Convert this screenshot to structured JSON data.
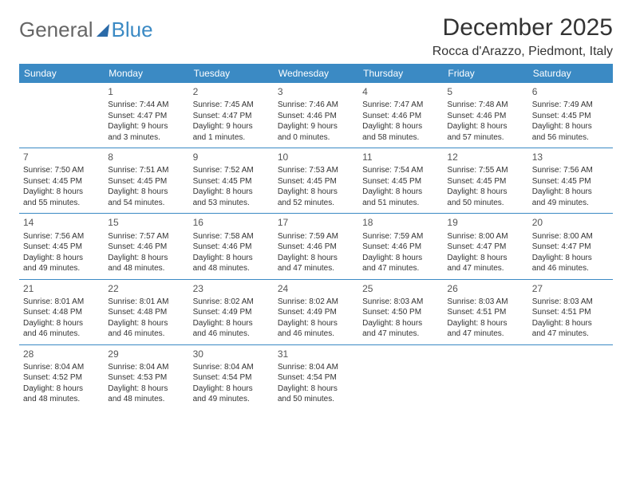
{
  "logo": {
    "text1": "General",
    "text2": "Blue"
  },
  "title": "December 2025",
  "location": "Rocca d'Arazzo, Piedmont, Italy",
  "colors": {
    "header_bg": "#3b8ac4",
    "header_text": "#ffffff",
    "border": "#3b8ac4",
    "text": "#333333",
    "logo_gray": "#666666",
    "logo_blue": "#3b8ac4"
  },
  "day_headers": [
    "Sunday",
    "Monday",
    "Tuesday",
    "Wednesday",
    "Thursday",
    "Friday",
    "Saturday"
  ],
  "weeks": [
    [
      null,
      {
        "n": "1",
        "l1": "Sunrise: 7:44 AM",
        "l2": "Sunset: 4:47 PM",
        "l3": "Daylight: 9 hours",
        "l4": "and 3 minutes."
      },
      {
        "n": "2",
        "l1": "Sunrise: 7:45 AM",
        "l2": "Sunset: 4:47 PM",
        "l3": "Daylight: 9 hours",
        "l4": "and 1 minutes."
      },
      {
        "n": "3",
        "l1": "Sunrise: 7:46 AM",
        "l2": "Sunset: 4:46 PM",
        "l3": "Daylight: 9 hours",
        "l4": "and 0 minutes."
      },
      {
        "n": "4",
        "l1": "Sunrise: 7:47 AM",
        "l2": "Sunset: 4:46 PM",
        "l3": "Daylight: 8 hours",
        "l4": "and 58 minutes."
      },
      {
        "n": "5",
        "l1": "Sunrise: 7:48 AM",
        "l2": "Sunset: 4:46 PM",
        "l3": "Daylight: 8 hours",
        "l4": "and 57 minutes."
      },
      {
        "n": "6",
        "l1": "Sunrise: 7:49 AM",
        "l2": "Sunset: 4:45 PM",
        "l3": "Daylight: 8 hours",
        "l4": "and 56 minutes."
      }
    ],
    [
      {
        "n": "7",
        "l1": "Sunrise: 7:50 AM",
        "l2": "Sunset: 4:45 PM",
        "l3": "Daylight: 8 hours",
        "l4": "and 55 minutes."
      },
      {
        "n": "8",
        "l1": "Sunrise: 7:51 AM",
        "l2": "Sunset: 4:45 PM",
        "l3": "Daylight: 8 hours",
        "l4": "and 54 minutes."
      },
      {
        "n": "9",
        "l1": "Sunrise: 7:52 AM",
        "l2": "Sunset: 4:45 PM",
        "l3": "Daylight: 8 hours",
        "l4": "and 53 minutes."
      },
      {
        "n": "10",
        "l1": "Sunrise: 7:53 AM",
        "l2": "Sunset: 4:45 PM",
        "l3": "Daylight: 8 hours",
        "l4": "and 52 minutes."
      },
      {
        "n": "11",
        "l1": "Sunrise: 7:54 AM",
        "l2": "Sunset: 4:45 PM",
        "l3": "Daylight: 8 hours",
        "l4": "and 51 minutes."
      },
      {
        "n": "12",
        "l1": "Sunrise: 7:55 AM",
        "l2": "Sunset: 4:45 PM",
        "l3": "Daylight: 8 hours",
        "l4": "and 50 minutes."
      },
      {
        "n": "13",
        "l1": "Sunrise: 7:56 AM",
        "l2": "Sunset: 4:45 PM",
        "l3": "Daylight: 8 hours",
        "l4": "and 49 minutes."
      }
    ],
    [
      {
        "n": "14",
        "l1": "Sunrise: 7:56 AM",
        "l2": "Sunset: 4:45 PM",
        "l3": "Daylight: 8 hours",
        "l4": "and 49 minutes."
      },
      {
        "n": "15",
        "l1": "Sunrise: 7:57 AM",
        "l2": "Sunset: 4:46 PM",
        "l3": "Daylight: 8 hours",
        "l4": "and 48 minutes."
      },
      {
        "n": "16",
        "l1": "Sunrise: 7:58 AM",
        "l2": "Sunset: 4:46 PM",
        "l3": "Daylight: 8 hours",
        "l4": "and 48 minutes."
      },
      {
        "n": "17",
        "l1": "Sunrise: 7:59 AM",
        "l2": "Sunset: 4:46 PM",
        "l3": "Daylight: 8 hours",
        "l4": "and 47 minutes."
      },
      {
        "n": "18",
        "l1": "Sunrise: 7:59 AM",
        "l2": "Sunset: 4:46 PM",
        "l3": "Daylight: 8 hours",
        "l4": "and 47 minutes."
      },
      {
        "n": "19",
        "l1": "Sunrise: 8:00 AM",
        "l2": "Sunset: 4:47 PM",
        "l3": "Daylight: 8 hours",
        "l4": "and 47 minutes."
      },
      {
        "n": "20",
        "l1": "Sunrise: 8:00 AM",
        "l2": "Sunset: 4:47 PM",
        "l3": "Daylight: 8 hours",
        "l4": "and 46 minutes."
      }
    ],
    [
      {
        "n": "21",
        "l1": "Sunrise: 8:01 AM",
        "l2": "Sunset: 4:48 PM",
        "l3": "Daylight: 8 hours",
        "l4": "and 46 minutes."
      },
      {
        "n": "22",
        "l1": "Sunrise: 8:01 AM",
        "l2": "Sunset: 4:48 PM",
        "l3": "Daylight: 8 hours",
        "l4": "and 46 minutes."
      },
      {
        "n": "23",
        "l1": "Sunrise: 8:02 AM",
        "l2": "Sunset: 4:49 PM",
        "l3": "Daylight: 8 hours",
        "l4": "and 46 minutes."
      },
      {
        "n": "24",
        "l1": "Sunrise: 8:02 AM",
        "l2": "Sunset: 4:49 PM",
        "l3": "Daylight: 8 hours",
        "l4": "and 46 minutes."
      },
      {
        "n": "25",
        "l1": "Sunrise: 8:03 AM",
        "l2": "Sunset: 4:50 PM",
        "l3": "Daylight: 8 hours",
        "l4": "and 47 minutes."
      },
      {
        "n": "26",
        "l1": "Sunrise: 8:03 AM",
        "l2": "Sunset: 4:51 PM",
        "l3": "Daylight: 8 hours",
        "l4": "and 47 minutes."
      },
      {
        "n": "27",
        "l1": "Sunrise: 8:03 AM",
        "l2": "Sunset: 4:51 PM",
        "l3": "Daylight: 8 hours",
        "l4": "and 47 minutes."
      }
    ],
    [
      {
        "n": "28",
        "l1": "Sunrise: 8:04 AM",
        "l2": "Sunset: 4:52 PM",
        "l3": "Daylight: 8 hours",
        "l4": "and 48 minutes."
      },
      {
        "n": "29",
        "l1": "Sunrise: 8:04 AM",
        "l2": "Sunset: 4:53 PM",
        "l3": "Daylight: 8 hours",
        "l4": "and 48 minutes."
      },
      {
        "n": "30",
        "l1": "Sunrise: 8:04 AM",
        "l2": "Sunset: 4:54 PM",
        "l3": "Daylight: 8 hours",
        "l4": "and 49 minutes."
      },
      {
        "n": "31",
        "l1": "Sunrise: 8:04 AM",
        "l2": "Sunset: 4:54 PM",
        "l3": "Daylight: 8 hours",
        "l4": "and 50 minutes."
      },
      null,
      null,
      null
    ]
  ]
}
